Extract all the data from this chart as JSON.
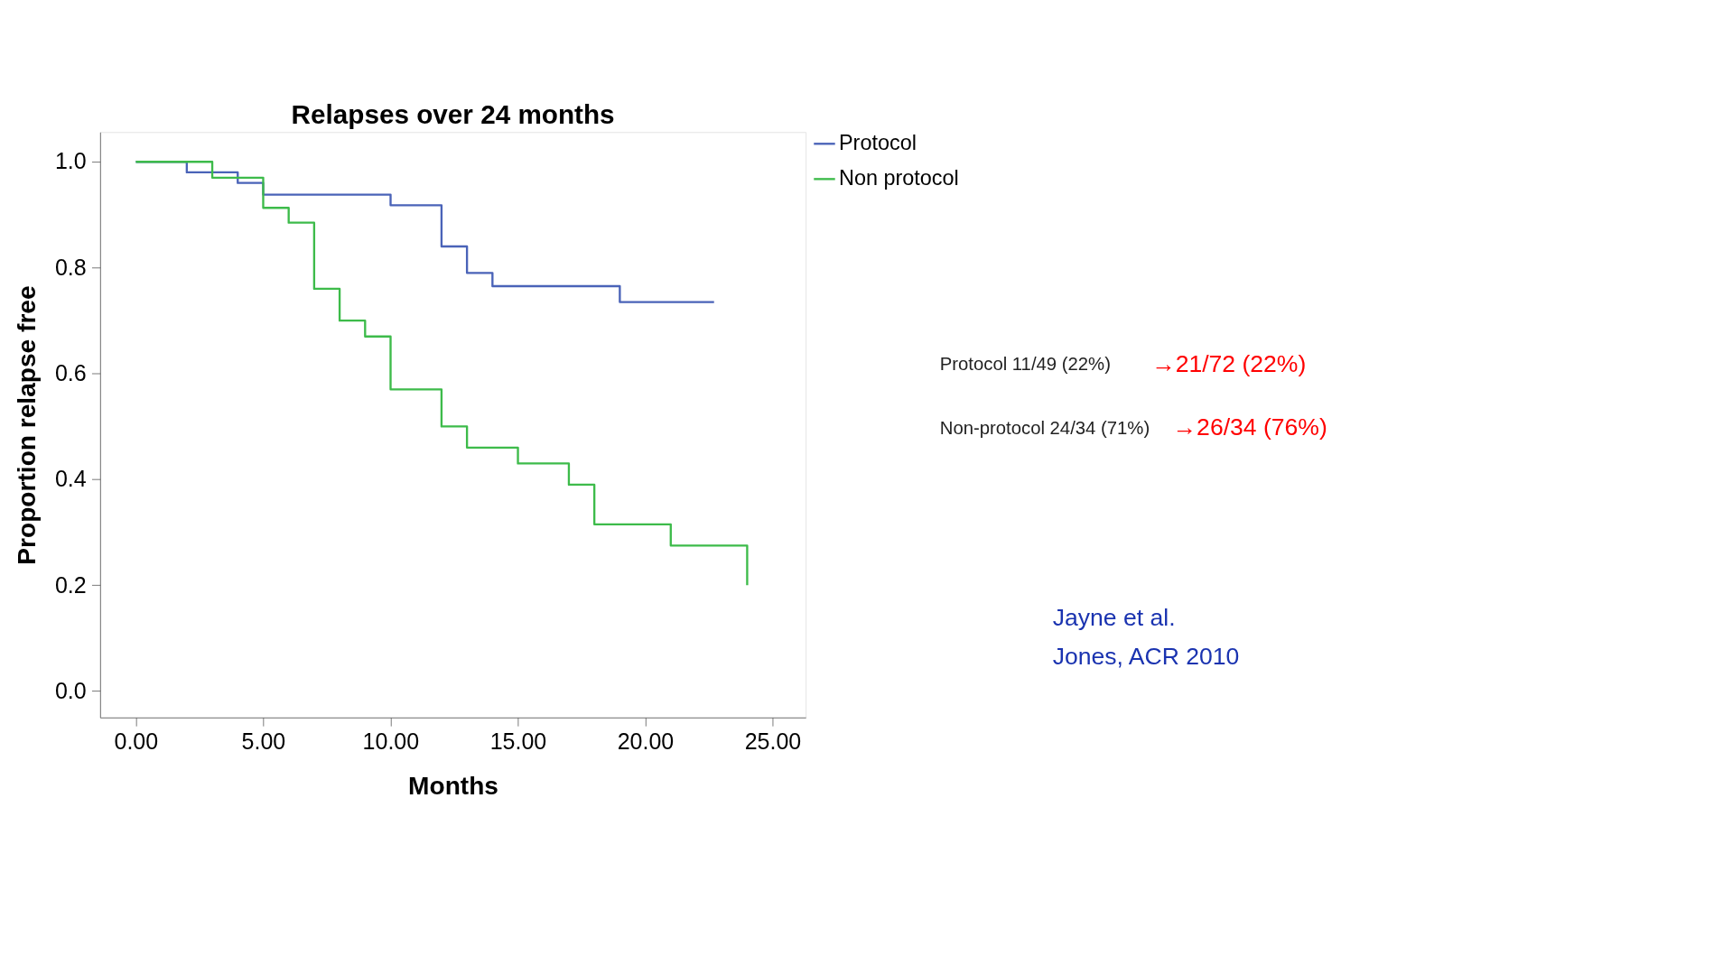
{
  "chart_data": {
    "type": "step",
    "title": "Relapses over 24 months",
    "xlabel": "Months",
    "ylabel": "Proportion relapse free",
    "xlim": [
      -1.4,
      26.3
    ],
    "ylim": [
      -0.05,
      1.056
    ],
    "xticks": [
      {
        "value": 0,
        "label": "0.00"
      },
      {
        "value": 5,
        "label": "5.00"
      },
      {
        "value": 10,
        "label": "10.00"
      },
      {
        "value": 15,
        "label": "15.00"
      },
      {
        "value": 20,
        "label": "20.00"
      },
      {
        "value": 25,
        "label": "25.00"
      }
    ],
    "yticks": [
      {
        "value": 0,
        "label": "0.0"
      },
      {
        "value": 0.2,
        "label": "0.2"
      },
      {
        "value": 0.4,
        "label": "0.4"
      },
      {
        "value": 0.6,
        "label": "0.6"
      },
      {
        "value": 0.8,
        "label": "0.8"
      },
      {
        "value": 1,
        "label": "1.0"
      }
    ],
    "grid": false,
    "legend": "right",
    "line_style": "solid",
    "marker": "none",
    "series": [
      {
        "name": "Protocol",
        "color": "#4a63b8",
        "x": [
          0,
          2,
          4,
          5,
          10,
          12,
          13,
          14,
          19,
          22.7
        ],
        "values": [
          1.0,
          0.98,
          0.96,
          0.938,
          0.918,
          0.84,
          0.79,
          0.765,
          0.735,
          0.735
        ]
      },
      {
        "name": "Non protocol",
        "color": "#3dbb4a",
        "x": [
          0,
          3,
          5,
          6,
          7,
          8,
          9,
          10,
          12,
          13,
          15,
          17,
          18,
          21,
          24,
          24
        ],
        "values": [
          1.0,
          0.97,
          0.913,
          0.885,
          0.76,
          0.7,
          0.67,
          0.57,
          0.5,
          0.46,
          0.43,
          0.39,
          0.315,
          0.275,
          0.275,
          0.2
        ]
      }
    ],
    "annotations": [
      "Protocol 11/49 (22%)",
      "→21/72 (22%)",
      "Non-protocol 24/34 (71%)",
      "→26/34 (76%)",
      "Jayne et al.",
      "Jones, ACR 2010"
    ]
  }
}
